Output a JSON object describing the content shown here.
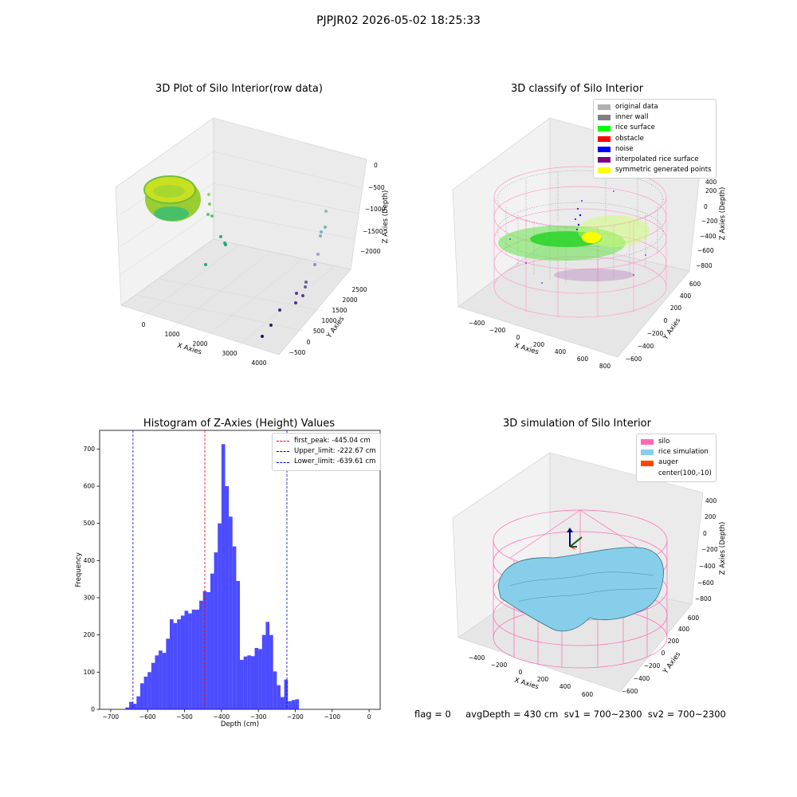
{
  "figure": {
    "title": "PJPJR02 2026-05-02 18:25:33"
  },
  "panels": {
    "raw": {
      "title": "3D Plot of Silo Interior(row data)",
      "xlabel": "X Axies",
      "ylabel": "Y Axies",
      "zlabel": "Z Axies (Depth)",
      "xticks": [
        "0",
        "1000",
        "2000",
        "3000",
        "4000"
      ],
      "yticks": [
        "−500",
        "0",
        "500",
        "1000",
        "1500",
        "2000",
        "2500"
      ],
      "zticks": [
        "0",
        "−500",
        "−1000",
        "−1500",
        "−2000"
      ]
    },
    "classify": {
      "title": "3D classify of Silo Interior",
      "xlabel": "X Axies",
      "ylabel": "Y Axies",
      "zlabel": "Z Axies (Depth)",
      "xticks": [
        "−400",
        "−200",
        "0",
        "200",
        "400",
        "600",
        "800"
      ],
      "yticks": [
        "−600",
        "−400",
        "−200",
        "0",
        "200",
        "400",
        "600"
      ],
      "zticks": [
        "400",
        "200",
        "0",
        "−200",
        "−400",
        "−600",
        "−800"
      ],
      "legend": [
        {
          "label": "original data",
          "color": "#b0b0b0"
        },
        {
          "label": "inner wall",
          "color": "#808080"
        },
        {
          "label": "rice surface",
          "color": "#00ff00"
        },
        {
          "label": "obstacle",
          "color": "#ff0000"
        },
        {
          "label": "noise",
          "color": "#0000ff"
        },
        {
          "label": "interpolated rice surface",
          "color": "#800080"
        },
        {
          "label": "symmetric generated points",
          "color": "#ffff00"
        }
      ]
    },
    "simulation": {
      "title": "3D simulation of Silo Interior",
      "xlabel": "X Axies",
      "ylabel": "Y Axies",
      "zlabel": "Z Axies (Depth)",
      "xticks": [
        "−400",
        "−200",
        "0",
        "200",
        "400",
        "600"
      ],
      "yticks": [
        "−600",
        "−400",
        "−200",
        "0",
        "200",
        "400",
        "600"
      ],
      "zticks": [
        "400",
        "200",
        "0",
        "−200",
        "−400",
        "−600",
        "−800"
      ],
      "legend": [
        {
          "label": "silo",
          "color": "#ff69b4"
        },
        {
          "label": "rice simulation",
          "color": "#87ceeb"
        },
        {
          "label": "auger",
          "color": "#ff4500"
        },
        {
          "label": "center(100,-10)",
          "color": ""
        }
      ]
    }
  },
  "status": {
    "text": "flag = 0     avgDepth = 430 cm  sv1 = 700~2300  sv2 = 700~2300"
  },
  "chart_data": {
    "type": "bar",
    "title": "Histogram of Z-Axies (Height) Values",
    "xlabel": "Depth (cm)",
    "ylabel": "Frequency",
    "xlim": [
      -730,
      30
    ],
    "ylim": [
      0,
      750
    ],
    "xticks": [
      -700,
      -600,
      -500,
      -400,
      -300,
      -200,
      -100,
      0
    ],
    "yticks": [
      0,
      100,
      200,
      300,
      400,
      500,
      600,
      700
    ],
    "bin_start": -660,
    "bin_width": 10,
    "values": [
      5,
      20,
      15,
      35,
      70,
      88,
      100,
      125,
      145,
      158,
      152,
      190,
      242,
      232,
      242,
      252,
      265,
      258,
      268,
      268,
      292,
      318,
      315,
      365,
      422,
      500,
      713,
      600,
      518,
      438,
      345,
      133,
      142,
      145,
      143,
      165,
      162,
      200,
      235,
      200,
      102,
      65,
      33,
      80,
      22,
      25,
      27
    ],
    "vlines": [
      {
        "label": "first_peak: -445.04 cm",
        "x": -445.04,
        "color": "#ff0000"
      },
      {
        "label": "Upper_limit: -222.67 cm",
        "x": -222.67,
        "color": "#0000cc"
      },
      {
        "label": "Lower_limit: -639.61 cm",
        "x": -639.61,
        "color": "#0000cc"
      }
    ]
  }
}
